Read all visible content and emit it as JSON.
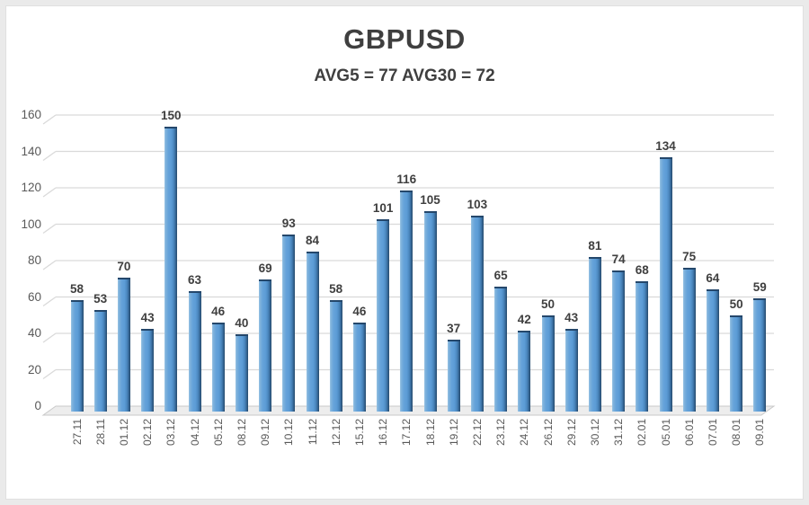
{
  "header": {
    "title": "GBPUSD",
    "subtitle": "AVG5 = 77 AVG30 = 72"
  },
  "chart_data": {
    "type": "bar",
    "title": "GBPUSD",
    "subtitle": "AVG5 = 77 AVG30 = 72",
    "categories": [
      "27.11",
      "28.11",
      "01.12",
      "02.12",
      "03.12",
      "04.12",
      "05.12",
      "08.12",
      "09.12",
      "10.12",
      "11.12",
      "12.12",
      "15.12",
      "16.12",
      "17.12",
      "18.12",
      "19.12",
      "22.12",
      "23.12",
      "24.12",
      "26.12",
      "29.12",
      "30.12",
      "31.12",
      "02.01",
      "05.01",
      "06.01",
      "07.01",
      "08.01",
      "09.01"
    ],
    "values": [
      58,
      53,
      70,
      43,
      150,
      63,
      46,
      40,
      69,
      93,
      84,
      58,
      46,
      101,
      116,
      105,
      37,
      103,
      65,
      42,
      50,
      43,
      81,
      74,
      68,
      134,
      75,
      64,
      50,
      59
    ],
    "ylim": [
      0,
      160
    ],
    "ytick_step": 20,
    "grid": true,
    "legend": false,
    "data_labels": true,
    "xlabel": "",
    "ylabel": "",
    "style": {
      "bar_color": "#5B9BD5",
      "bar_highlight": "#9AC4E6",
      "bar_shadow": "#2E5A82",
      "bar_cap": "#24476B",
      "gridline_color": "#D9D9D9",
      "floor_fill": "#EDEDED",
      "floor_edge": "#C9C9C9",
      "title_color": "#3F3F3F",
      "subtitle_color": "#3F3F3F",
      "value_label_color": "#3F3F3F",
      "axis_label_color": "#595959",
      "frame_color": "#EAEAEA",
      "background": "#FFFFFF"
    }
  }
}
